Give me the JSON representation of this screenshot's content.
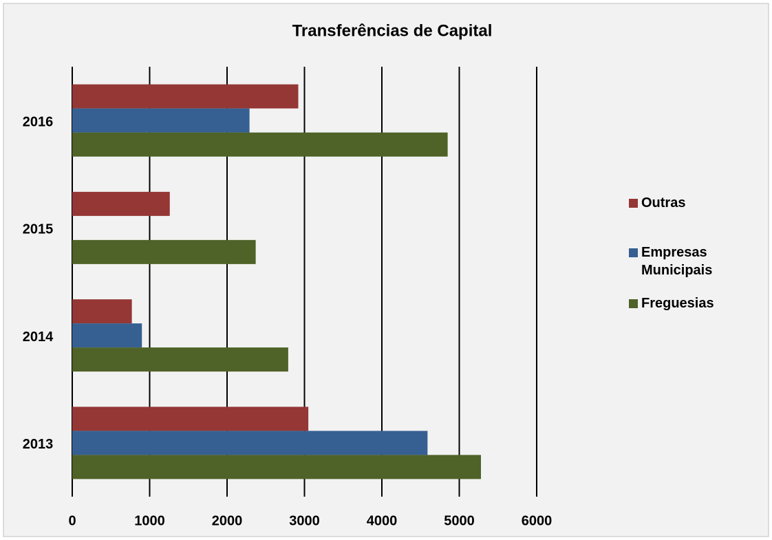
{
  "chart_data": {
    "type": "hbar",
    "title": "Transferências de Capital",
    "categories": [
      "2013",
      "2014",
      "2015",
      "2016"
    ],
    "series": [
      {
        "name": "Outras",
        "color": "#953735",
        "values": [
          3050,
          770,
          1260,
          2920
        ]
      },
      {
        "name": "Empresas Municipais",
        "color": "#366092",
        "values": [
          4590,
          900,
          0,
          2290
        ]
      },
      {
        "name": "Freguesias",
        "color": "#4f6228",
        "values": [
          5280,
          2790,
          2370,
          4850
        ]
      }
    ],
    "xlim": [
      0,
      6000
    ],
    "xticks": [
      0,
      1000,
      2000,
      3000,
      4000,
      5000,
      6000
    ],
    "grid": true,
    "legend": "right"
  }
}
